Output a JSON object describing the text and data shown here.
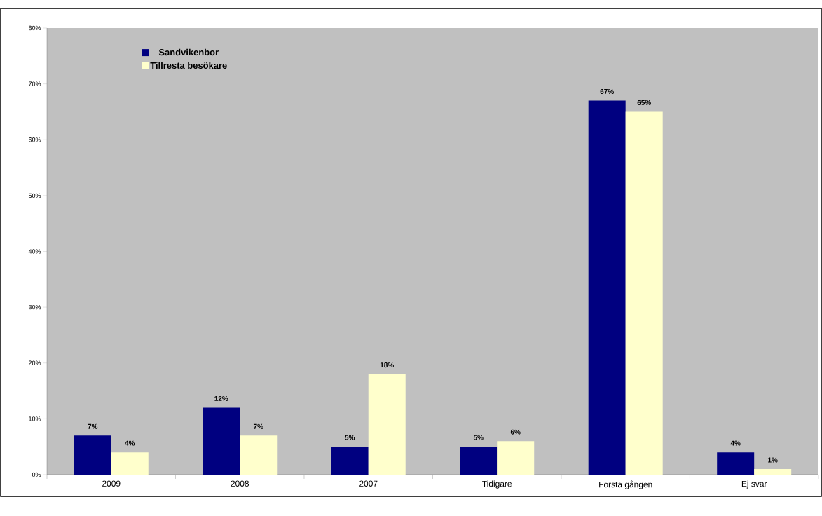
{
  "chart_data": {
    "type": "bar",
    "categories": [
      "2009",
      "2008",
      "2007",
      "Tidigare",
      "Första gången",
      "Ej svar"
    ],
    "series": [
      {
        "name": "Sandvikenbor",
        "color": "#000080",
        "values": [
          7,
          12,
          5,
          5,
          67,
          4
        ],
        "value_labels": [
          "7%",
          "12%",
          "5%",
          "5%",
          "67%",
          "4%"
        ]
      },
      {
        "name": "Tillresta besökare",
        "color": "#ffffcc",
        "values": [
          4,
          7,
          18,
          6,
          65,
          1
        ],
        "value_labels": [
          "4%",
          "7%",
          "18%",
          "6%",
          "65%",
          "1%"
        ]
      }
    ],
    "ylim": [
      0,
      80
    ],
    "yticks": [
      {
        "value": 0,
        "label": "0%"
      },
      {
        "value": 10,
        "label": "10%"
      },
      {
        "value": 20,
        "label": "20%"
      },
      {
        "value": 30,
        "label": "30%"
      },
      {
        "value": 40,
        "label": "40%"
      },
      {
        "value": 50,
        "label": "50%"
      },
      {
        "value": 60,
        "label": "60%"
      },
      {
        "value": 70,
        "label": "70%"
      },
      {
        "value": 80,
        "label": "80%"
      }
    ],
    "legend": "top left",
    "grid": false
  }
}
